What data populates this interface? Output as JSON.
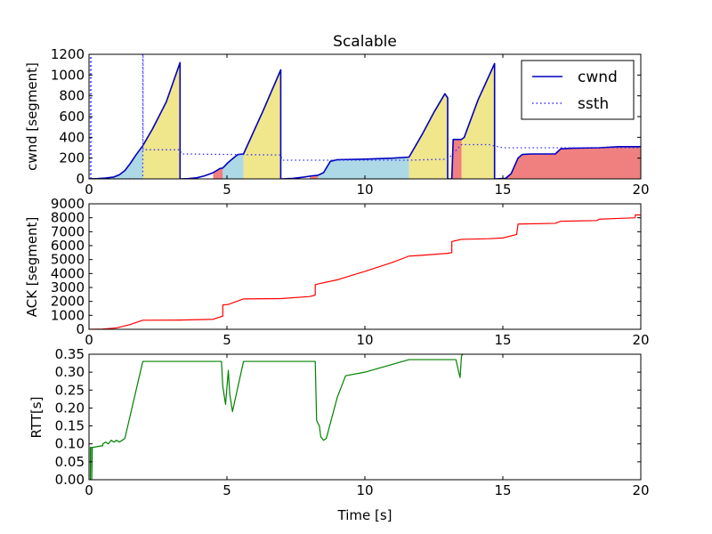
{
  "chart_data": [
    {
      "type": "area",
      "title": "Scalable",
      "xlabel": "",
      "ylabel": "cwnd [segment]",
      "xlim": [
        0,
        20
      ],
      "ylim": [
        0,
        1200
      ],
      "xticks": [
        0,
        5,
        10,
        15,
        20
      ],
      "xtick_labels": [
        "0",
        "5",
        "10",
        "15",
        "20"
      ],
      "yticks": [
        0,
        200,
        400,
        600,
        800,
        1000,
        1200
      ],
      "ytick_labels": [
        "0",
        "200",
        "400",
        "600",
        "800",
        "1000",
        "1200"
      ],
      "legend": {
        "position": "top-right",
        "entries": [
          {
            "label": "cwnd",
            "style": "solid"
          },
          {
            "label": "ssth",
            "style": "dotted"
          }
        ]
      },
      "colors": {
        "cwnd": "#0000bf",
        "ssth": "#3333ff",
        "slow_start": "#add8e6",
        "congestion_avoidance": "#f0e68c",
        "fast_recovery": "#f08080"
      },
      "series": [
        {
          "name": "cwnd",
          "points": [
            [
              0,
              0
            ],
            [
              0.3,
              3
            ],
            [
              0.6,
              8
            ],
            [
              0.9,
              18
            ],
            [
              1.1,
              40
            ],
            [
              1.3,
              80
            ],
            [
              1.5,
              150
            ],
            [
              1.7,
              230
            ],
            [
              1.95,
              320
            ],
            [
              2.3,
              480
            ],
            [
              2.8,
              740
            ],
            [
              3.3,
              1120
            ],
            [
              3.3,
              0
            ],
            [
              3.6,
              3
            ],
            [
              3.9,
              10
            ],
            [
              4.2,
              30
            ],
            [
              4.5,
              60
            ],
            [
              4.75,
              100
            ],
            [
              4.85,
              105
            ],
            [
              5.05,
              160
            ],
            [
              5.3,
              215
            ],
            [
              5.4,
              235
            ],
            [
              5.6,
              240
            ],
            [
              6.3,
              650
            ],
            [
              6.95,
              1050
            ],
            [
              6.95,
              0
            ],
            [
              7.4,
              5
            ],
            [
              7.8,
              18
            ],
            [
              8.1,
              30
            ],
            [
              8.3,
              35
            ],
            [
              8.5,
              60
            ],
            [
              8.75,
              170
            ],
            [
              9.0,
              185
            ],
            [
              10.0,
              190
            ],
            [
              11.0,
              200
            ],
            [
              11.6,
              210
            ],
            [
              12.1,
              440
            ],
            [
              12.5,
              640
            ],
            [
              12.9,
              820
            ],
            [
              13.0,
              780
            ],
            [
              13.0,
              0
            ],
            [
              13.15,
              0
            ],
            [
              13.2,
              380
            ],
            [
              13.5,
              380
            ],
            [
              13.6,
              400
            ],
            [
              14.1,
              760
            ],
            [
              14.7,
              1110
            ],
            [
              14.7,
              0
            ],
            [
              15.1,
              5
            ],
            [
              15.3,
              50
            ],
            [
              15.55,
              200
            ],
            [
              15.7,
              235
            ],
            [
              16.0,
              240
            ],
            [
              16.9,
              240
            ],
            [
              17.1,
              290
            ],
            [
              17.5,
              295
            ],
            [
              18.5,
              300
            ],
            [
              19.2,
              310
            ],
            [
              20,
              310
            ]
          ]
        },
        {
          "name": "ssth",
          "points": [
            [
              0.05,
              0
            ],
            [
              0.05,
              1200
            ],
            [
              0.08,
              1200
            ],
            [
              0.08,
              0
            ],
            [
              1.95,
              0
            ],
            [
              1.95,
              1200
            ],
            [
              1.96,
              1200
            ],
            [
              1.96,
              280
            ],
            [
              3.3,
              280
            ],
            [
              3.35,
              240
            ],
            [
              6.95,
              230
            ],
            [
              7.0,
              180
            ],
            [
              9.0,
              180
            ],
            [
              11.6,
              180
            ],
            [
              13.0,
              190
            ],
            [
              13.5,
              330
            ],
            [
              14.5,
              330
            ],
            [
              15.0,
              300
            ],
            [
              18.0,
              300
            ],
            [
              20,
              300
            ]
          ]
        }
      ],
      "regions": [
        {
          "phase": "slow_start",
          "x": [
            0,
            1.95
          ]
        },
        {
          "phase": "congestion_avoidance",
          "x": [
            1.95,
            3.3
          ]
        },
        {
          "phase": "fast_recovery",
          "x": [
            4.5,
            4.85
          ]
        },
        {
          "phase": "slow_start",
          "x": [
            4.85,
            5.6
          ]
        },
        {
          "phase": "congestion_avoidance",
          "x": [
            5.6,
            6.95
          ]
        },
        {
          "phase": "fast_recovery",
          "x": [
            8.0,
            8.3
          ]
        },
        {
          "phase": "slow_start",
          "x": [
            8.3,
            11.6
          ]
        },
        {
          "phase": "congestion_avoidance",
          "x": [
            11.6,
            13.0
          ]
        },
        {
          "phase": "fast_recovery",
          "x": [
            13.15,
            13.5
          ]
        },
        {
          "phase": "congestion_avoidance",
          "x": [
            13.5,
            14.7
          ]
        },
        {
          "phase": "fast_recovery",
          "x": [
            15.0,
            20
          ]
        }
      ]
    },
    {
      "type": "line",
      "title": "",
      "xlabel": "",
      "ylabel": "ACK [segment]",
      "xlim": [
        0,
        20
      ],
      "ylim": [
        0,
        9000
      ],
      "xticks": [
        0,
        5,
        10,
        15,
        20
      ],
      "xtick_labels": [
        "0",
        "5",
        "10",
        "15",
        "20"
      ],
      "yticks": [
        0,
        1000,
        2000,
        3000,
        4000,
        5000,
        6000,
        7000,
        8000,
        9000
      ],
      "ytick_labels": [
        "0",
        "1000",
        "2000",
        "3000",
        "4000",
        "5000",
        "6000",
        "7000",
        "8000",
        "9000"
      ],
      "colors": {
        "ack": "#ff0000"
      },
      "series": [
        {
          "name": "ACK",
          "points": [
            [
              0,
              0
            ],
            [
              0.5,
              20
            ],
            [
              1.0,
              100
            ],
            [
              1.5,
              350
            ],
            [
              1.95,
              650
            ],
            [
              3.3,
              660
            ],
            [
              4.5,
              720
            ],
            [
              4.85,
              950
            ],
            [
              4.85,
              1750
            ],
            [
              5.05,
              1780
            ],
            [
              5.6,
              2180
            ],
            [
              6.95,
              2200
            ],
            [
              8.0,
              2350
            ],
            [
              8.2,
              2450
            ],
            [
              8.2,
              3200
            ],
            [
              8.3,
              3250
            ],
            [
              9.0,
              3550
            ],
            [
              10.0,
              4150
            ],
            [
              11.0,
              4800
            ],
            [
              11.6,
              5250
            ],
            [
              12.0,
              5300
            ],
            [
              13.0,
              5450
            ],
            [
              13.15,
              5500
            ],
            [
              13.15,
              6300
            ],
            [
              13.5,
              6450
            ],
            [
              14.5,
              6500
            ],
            [
              15.0,
              6550
            ],
            [
              15.5,
              6800
            ],
            [
              15.55,
              7550
            ],
            [
              16.9,
              7600
            ],
            [
              17.1,
              7750
            ],
            [
              18.4,
              7800
            ],
            [
              18.5,
              7900
            ],
            [
              19.2,
              7950
            ],
            [
              19.8,
              8000
            ],
            [
              19.8,
              8200
            ],
            [
              20,
              8200
            ]
          ]
        }
      ]
    },
    {
      "type": "line",
      "title": "",
      "xlabel": "Time [s]",
      "ylabel": "RTT[s]",
      "xlim": [
        0,
        20
      ],
      "ylim": [
        0,
        0.35
      ],
      "xticks": [
        0,
        5,
        10,
        15,
        20
      ],
      "xtick_labels": [
        "0",
        "5",
        "10",
        "15",
        "20"
      ],
      "yticks": [
        0,
        0.05,
        0.1,
        0.15,
        0.2,
        0.25,
        0.3,
        0.35
      ],
      "ytick_labels": [
        "0.00",
        "0.05",
        "0.10",
        "0.15",
        "0.20",
        "0.25",
        "0.30",
        "0.35"
      ],
      "colors": {
        "rtt": "#008000"
      },
      "series": [
        {
          "name": "RTT",
          "points": [
            [
              0.05,
              0.0
            ],
            [
              0.05,
              0.09
            ],
            [
              0.1,
              0.09
            ],
            [
              0.1,
              0.0
            ],
            [
              0.12,
              0.09
            ],
            [
              0.5,
              0.095
            ],
            [
              0.5,
              0.1
            ],
            [
              0.6,
              0.105
            ],
            [
              0.7,
              0.1
            ],
            [
              0.8,
              0.11
            ],
            [
              0.9,
              0.105
            ],
            [
              1.0,
              0.11
            ],
            [
              1.1,
              0.105
            ],
            [
              1.2,
              0.11
            ],
            [
              1.3,
              0.115
            ],
            [
              1.95,
              0.33
            ],
            [
              4.8,
              0.33
            ],
            [
              4.85,
              0.26
            ],
            [
              4.95,
              0.21
            ],
            [
              5.05,
              0.305
            ],
            [
              5.1,
              0.24
            ],
            [
              5.2,
              0.19
            ],
            [
              5.6,
              0.33
            ],
            [
              8.2,
              0.33
            ],
            [
              8.25,
              0.165
            ],
            [
              8.35,
              0.15
            ],
            [
              8.4,
              0.12
            ],
            [
              8.5,
              0.11
            ],
            [
              8.6,
              0.115
            ],
            [
              9.0,
              0.23
            ],
            [
              9.3,
              0.29
            ],
            [
              10.0,
              0.3
            ],
            [
              11.6,
              0.335
            ],
            [
              13.3,
              0.335
            ],
            [
              13.4,
              0.3
            ],
            [
              13.45,
              0.285
            ],
            [
              13.5,
              0.345
            ],
            [
              13.55,
              0.35
            ]
          ]
        }
      ]
    }
  ]
}
